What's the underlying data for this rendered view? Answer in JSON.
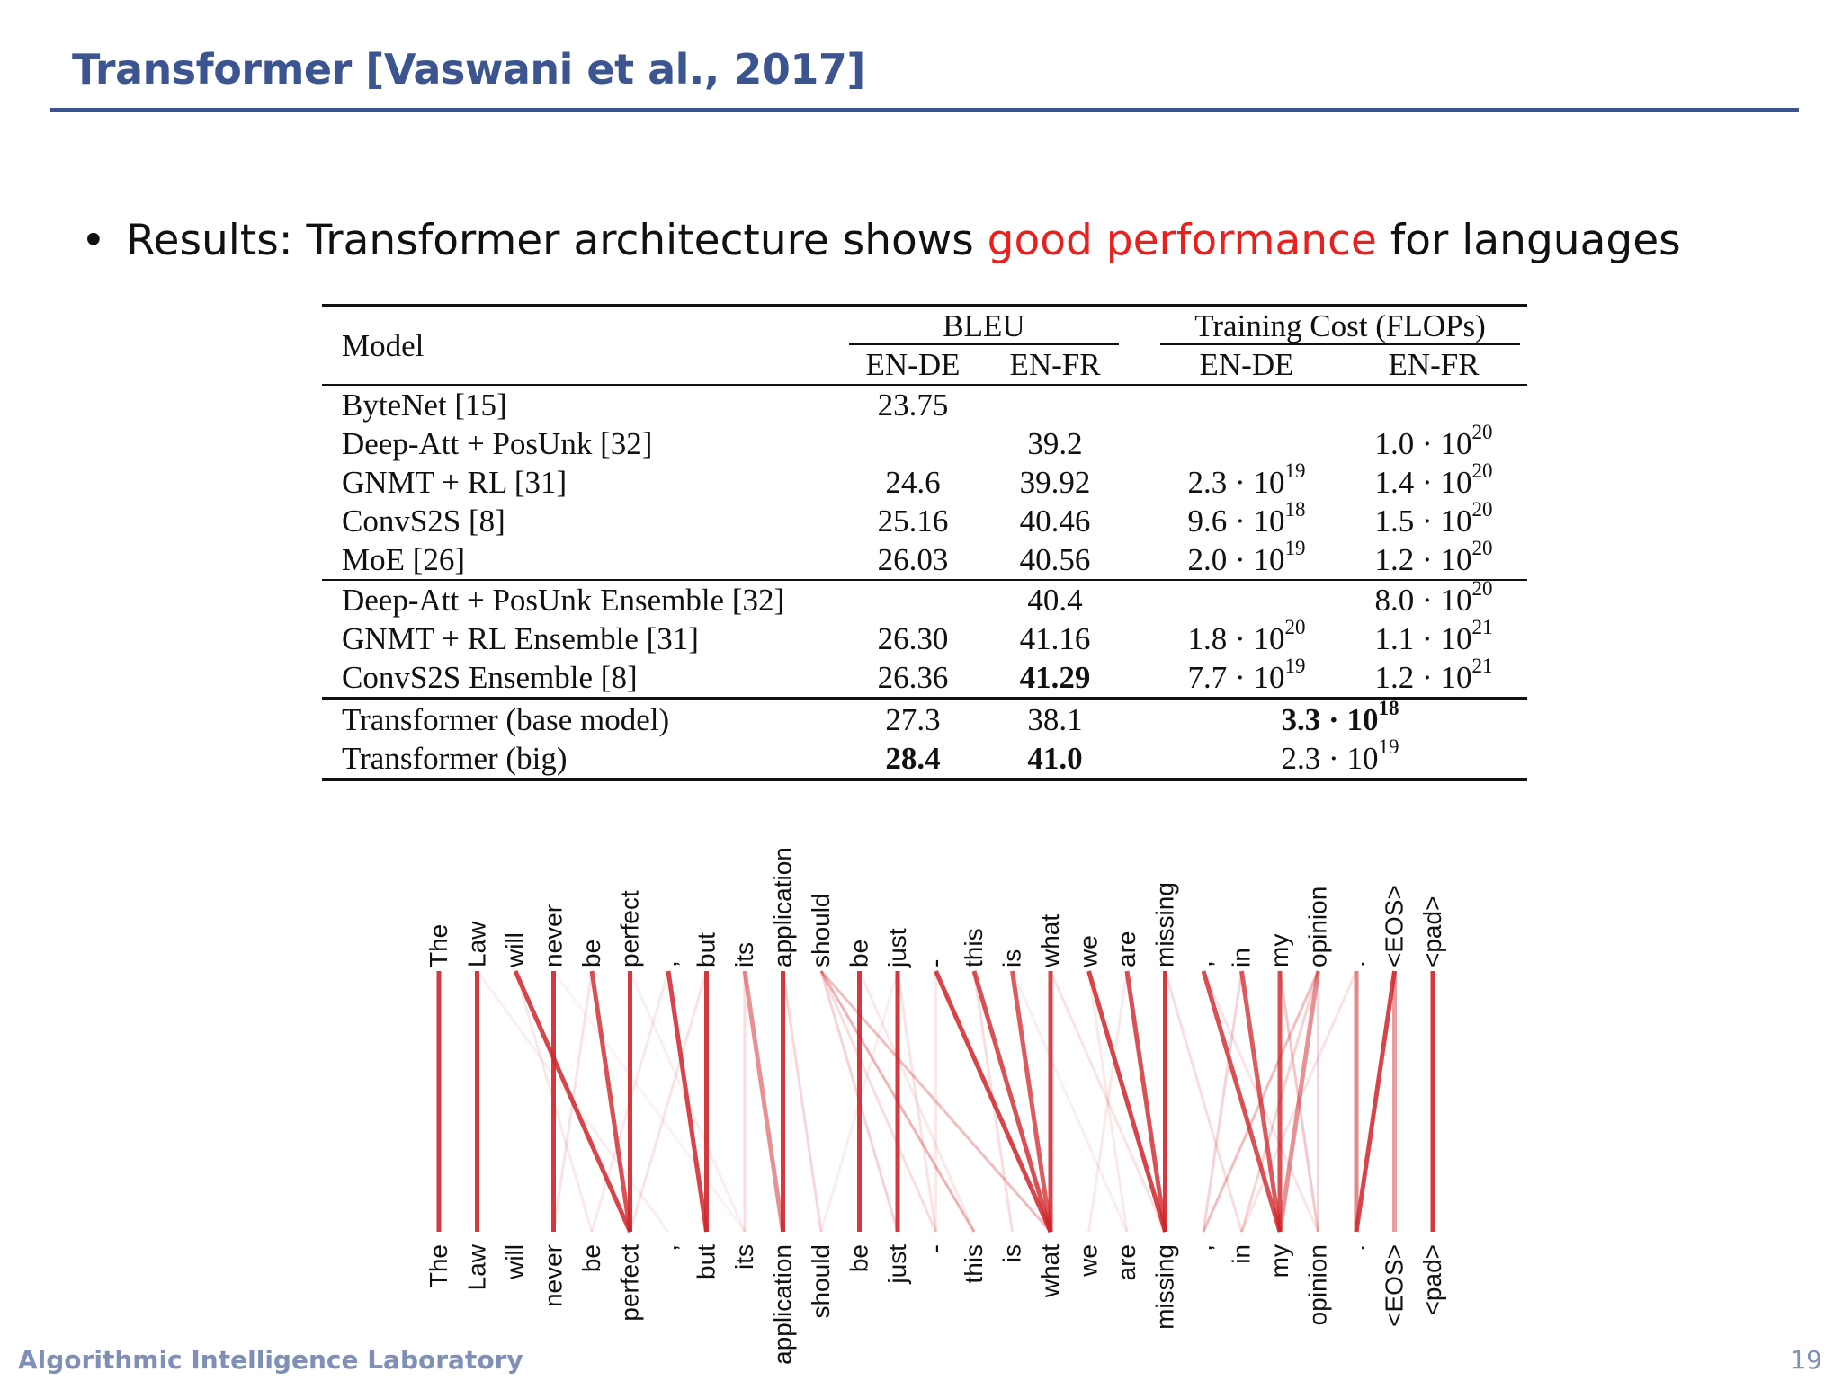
{
  "slide": {
    "title": "Transformer [Vaswani et al., 2017]",
    "bullet": {
      "prefix": "Results: Transformer architecture shows ",
      "highlight": "good performance",
      "suffix": " for languages",
      "highlight_color": "#e8211e"
    },
    "footer": "Algorithmic Intelligence Laboratory",
    "page_number": "19",
    "title_color": "#3c5591"
  },
  "table": {
    "header": {
      "model": "Model",
      "bleu": "BLEU",
      "cost": "Training Cost (FLOPs)",
      "en_de": "EN-DE",
      "en_fr": "EN-FR"
    },
    "rows": [
      {
        "model": "ByteNet [15]",
        "bleu_de": "23.75",
        "bleu_fr": "",
        "cost_de": "",
        "cost_fr": ""
      },
      {
        "model": "Deep-Att + PosUnk [32]",
        "bleu_de": "",
        "bleu_fr": "39.2",
        "cost_de": "",
        "cost_fr": "1.0 · 10",
        "cost_fr_exp": "20"
      },
      {
        "model": "GNMT + RL [31]",
        "bleu_de": "24.6",
        "bleu_fr": "39.92",
        "cost_de": "2.3 · 10",
        "cost_de_exp": "19",
        "cost_fr": "1.4 · 10",
        "cost_fr_exp": "20"
      },
      {
        "model": "ConvS2S [8]",
        "bleu_de": "25.16",
        "bleu_fr": "40.46",
        "cost_de": "9.6 · 10",
        "cost_de_exp": "18",
        "cost_fr": "1.5 · 10",
        "cost_fr_exp": "20"
      },
      {
        "model": "MoE [26]",
        "bleu_de": "26.03",
        "bleu_fr": "40.56",
        "cost_de": "2.0 · 10",
        "cost_de_exp": "19",
        "cost_fr": "1.2 · 10",
        "cost_fr_exp": "20"
      },
      {
        "model": "Deep-Att + PosUnk Ensemble [32]",
        "bleu_de": "",
        "bleu_fr": "40.4",
        "cost_de": "",
        "cost_fr": "8.0 · 10",
        "cost_fr_exp": "20"
      },
      {
        "model": "GNMT + RL Ensemble [31]",
        "bleu_de": "26.30",
        "bleu_fr": "41.16",
        "cost_de": "1.8 · 10",
        "cost_de_exp": "20",
        "cost_fr": "1.1 · 10",
        "cost_fr_exp": "21"
      },
      {
        "model": "ConvS2S Ensemble [8]",
        "bleu_de": "26.36",
        "bleu_fr": "41.29",
        "cost_de": "7.7 · 10",
        "cost_de_exp": "19",
        "cost_fr": "1.2 · 10",
        "cost_fr_exp": "21"
      },
      {
        "model": "Transformer (base model)",
        "bleu_de": "27.3",
        "bleu_fr": "38.1",
        "cost": "3.3 · 10",
        "cost_exp": "18"
      },
      {
        "model": "Transformer (big)",
        "bleu_de": "28.4",
        "bleu_fr": "41.0",
        "cost": "2.3 · 10",
        "cost_exp": "19"
      }
    ]
  },
  "attention": {
    "tokens": [
      "The",
      "Law",
      "will",
      "never",
      "be",
      "perfect",
      ",",
      "but",
      "its",
      "application",
      "should",
      "be",
      "just",
      "-",
      "this",
      "is",
      "what",
      "we",
      "are",
      "missing",
      ",",
      "in",
      "my",
      "opinion",
      ".",
      "<EOS>",
      "<pad>"
    ],
    "line_color": "#d0242a",
    "links": [
      [
        0,
        0,
        0.9
      ],
      [
        1,
        1,
        0.9
      ],
      [
        2,
        5,
        0.85
      ],
      [
        3,
        3,
        0.9
      ],
      [
        4,
        5,
        0.8
      ],
      [
        5,
        5,
        0.9
      ],
      [
        6,
        7,
        0.85
      ],
      [
        7,
        7,
        0.9
      ],
      [
        8,
        9,
        0.5
      ],
      [
        9,
        9,
        0.9
      ],
      [
        10,
        12,
        0.2
      ],
      [
        10,
        14,
        0.35
      ],
      [
        10,
        16,
        0.3
      ],
      [
        11,
        11,
        0.9
      ],
      [
        12,
        12,
        0.9
      ],
      [
        13,
        16,
        0.85
      ],
      [
        14,
        16,
        0.8
      ],
      [
        15,
        16,
        0.75
      ],
      [
        16,
        16,
        0.85
      ],
      [
        17,
        19,
        0.85
      ],
      [
        18,
        19,
        0.8
      ],
      [
        19,
        19,
        0.9
      ],
      [
        20,
        22,
        0.8
      ],
      [
        21,
        22,
        0.75
      ],
      [
        22,
        22,
        0.8
      ],
      [
        23,
        22,
        0.5
      ],
      [
        23,
        20,
        0.3
      ],
      [
        24,
        24,
        0.55
      ],
      [
        25,
        24,
        0.85
      ],
      [
        25,
        25,
        0.45
      ],
      [
        26,
        26,
        0.9
      ],
      [
        2,
        4,
        0.1
      ],
      [
        4,
        3,
        0.12
      ],
      [
        7,
        5,
        0.12
      ],
      [
        8,
        8,
        0.15
      ],
      [
        9,
        10,
        0.18
      ],
      [
        10,
        13,
        0.15
      ],
      [
        12,
        13,
        0.12
      ],
      [
        13,
        13,
        0.1
      ],
      [
        14,
        15,
        0.15
      ],
      [
        16,
        19,
        0.12
      ],
      [
        17,
        18,
        0.1
      ],
      [
        19,
        21,
        0.15
      ],
      [
        21,
        20,
        0.2
      ],
      [
        22,
        23,
        0.25
      ],
      [
        23,
        23,
        0.2
      ],
      [
        23,
        21,
        0.2
      ],
      [
        1,
        6,
        0.08
      ],
      [
        5,
        8,
        0.08
      ],
      [
        6,
        4,
        0.1
      ],
      [
        11,
        14,
        0.1
      ],
      [
        18,
        17,
        0.1
      ],
      [
        20,
        23,
        0.12
      ],
      [
        24,
        21,
        0.12
      ],
      [
        15,
        18,
        0.08
      ],
      [
        3,
        8,
        0.06
      ],
      [
        12,
        10,
        0.08
      ]
    ]
  }
}
